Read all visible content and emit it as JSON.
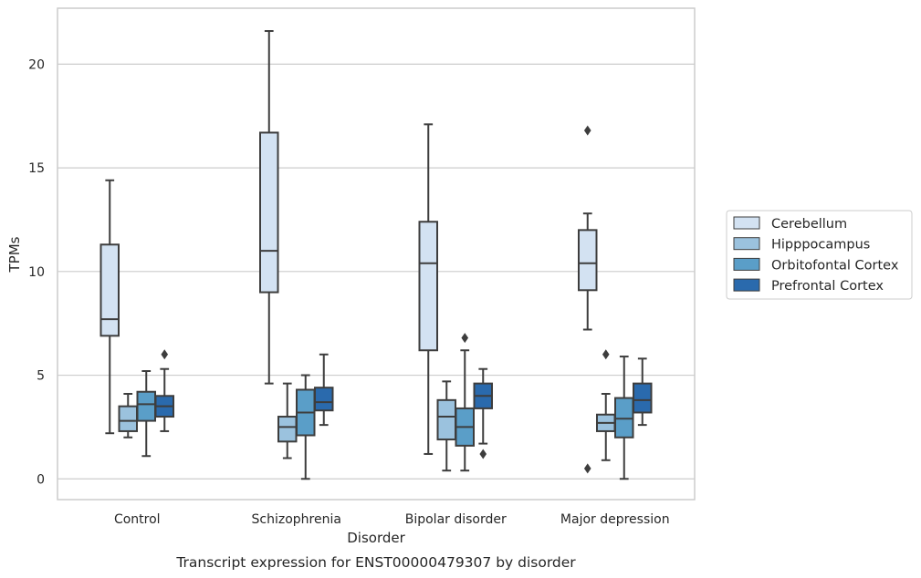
{
  "caption": "Transcript expression for ENST00000479307 by disorder",
  "chart_data": {
    "type": "box",
    "xlabel": "Disorder",
    "ylabel": "TPMs",
    "ylim": [
      -1,
      22.7
    ],
    "yticks": [
      0,
      5,
      10,
      15,
      20
    ],
    "grid": "horizontal",
    "legend_position": "right",
    "categories": [
      "Control",
      "Schizophrenia",
      "Bipolar disorder",
      "Major depression"
    ],
    "series": [
      {
        "name": "Cerebellum",
        "color": "#d3e2f2",
        "boxes": [
          {
            "whislo": 2.2,
            "q1": 6.9,
            "med": 7.7,
            "q3": 11.3,
            "whishi": 14.4,
            "fliers": []
          },
          {
            "whislo": 4.6,
            "q1": 9.0,
            "med": 11.0,
            "q3": 16.7,
            "whishi": 21.6,
            "fliers": []
          },
          {
            "whislo": 1.2,
            "q1": 6.2,
            "med": 10.4,
            "q3": 12.4,
            "whishi": 17.1,
            "fliers": []
          },
          {
            "whislo": 7.2,
            "q1": 9.1,
            "med": 10.4,
            "q3": 12.0,
            "whishi": 12.8,
            "fliers": [
              16.8,
              0.5
            ]
          }
        ]
      },
      {
        "name": "Hipppocampus",
        "color": "#9bc2de",
        "boxes": [
          {
            "whislo": 2.0,
            "q1": 2.3,
            "med": 2.8,
            "q3": 3.5,
            "whishi": 4.1,
            "fliers": []
          },
          {
            "whislo": 1.0,
            "q1": 1.8,
            "med": 2.5,
            "q3": 3.0,
            "whishi": 4.6,
            "fliers": []
          },
          {
            "whislo": 0.4,
            "q1": 1.9,
            "med": 3.0,
            "q3": 3.8,
            "whishi": 4.7,
            "fliers": []
          },
          {
            "whislo": 0.9,
            "q1": 2.3,
            "med": 2.7,
            "q3": 3.1,
            "whishi": 4.1,
            "fliers": [
              6.0
            ]
          }
        ]
      },
      {
        "name": "Orbitofontal Cortex",
        "color": "#5a9ec8",
        "boxes": [
          {
            "whislo": 1.1,
            "q1": 2.8,
            "med": 3.6,
            "q3": 4.2,
            "whishi": 5.2,
            "fliers": []
          },
          {
            "whislo": 0.0,
            "q1": 2.1,
            "med": 3.2,
            "q3": 4.3,
            "whishi": 5.0,
            "fliers": []
          },
          {
            "whislo": 0.4,
            "q1": 1.6,
            "med": 2.5,
            "q3": 3.4,
            "whishi": 6.2,
            "fliers": [
              6.8
            ]
          },
          {
            "whislo": 0.0,
            "q1": 2.0,
            "med": 2.9,
            "q3": 3.9,
            "whishi": 5.9,
            "fliers": []
          }
        ]
      },
      {
        "name": "Prefrontal Cortex",
        "color": "#2a6aad",
        "boxes": [
          {
            "whislo": 2.3,
            "q1": 3.0,
            "med": 3.5,
            "q3": 4.0,
            "whishi": 5.3,
            "fliers": [
              6.0
            ]
          },
          {
            "whislo": 2.6,
            "q1": 3.3,
            "med": 3.7,
            "q3": 4.4,
            "whishi": 6.0,
            "fliers": []
          },
          {
            "whislo": 1.7,
            "q1": 3.4,
            "med": 4.0,
            "q3": 4.6,
            "whishi": 5.3,
            "fliers": [
              1.2
            ]
          },
          {
            "whislo": 2.6,
            "q1": 3.2,
            "med": 3.8,
            "q3": 4.6,
            "whishi": 5.8,
            "fliers": []
          }
        ]
      }
    ]
  }
}
